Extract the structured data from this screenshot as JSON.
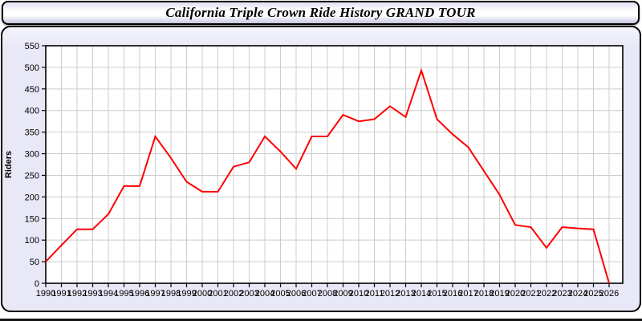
{
  "page": {
    "title": "California Triple Crown Ride History GRAND TOUR"
  },
  "colors": {
    "line": "#FF0000",
    "plot_background": "#FFFFFF",
    "panel_background": "#E8E8F6",
    "gridline": "#CCCCCC",
    "axis_frame": "#000000",
    "text": "#000000"
  },
  "chart_data": {
    "type": "line",
    "title": "California Triple Crown Ride History GRAND TOUR",
    "xlabel": "",
    "ylabel": "Riders",
    "ylim": [
      0,
      550
    ],
    "ytick_step": 50,
    "grid": true,
    "legend_position": "none",
    "x": [
      1990,
      1991,
      1992,
      1993,
      1994,
      1995,
      1996,
      1997,
      1998,
      1999,
      2000,
      2001,
      2002,
      2003,
      2004,
      2005,
      2006,
      2007,
      2008,
      2009,
      2010,
      2011,
      2012,
      2013,
      2014,
      2015,
      2016,
      2017,
      2018,
      2019,
      2020,
      2021,
      2022,
      2023,
      2024,
      2025,
      2026
    ],
    "series": [
      {
        "name": "Riders",
        "color": "#FF0000",
        "values": [
          50,
          88,
          125,
          125,
          160,
          225,
          225,
          340,
          290,
          235,
          212,
          212,
          270,
          280,
          340,
          305,
          265,
          340,
          340,
          390,
          375,
          380,
          410,
          385,
          493,
          380,
          345,
          315,
          260,
          205,
          135,
          130,
          82,
          130,
          127,
          125,
          0
        ]
      }
    ]
  }
}
